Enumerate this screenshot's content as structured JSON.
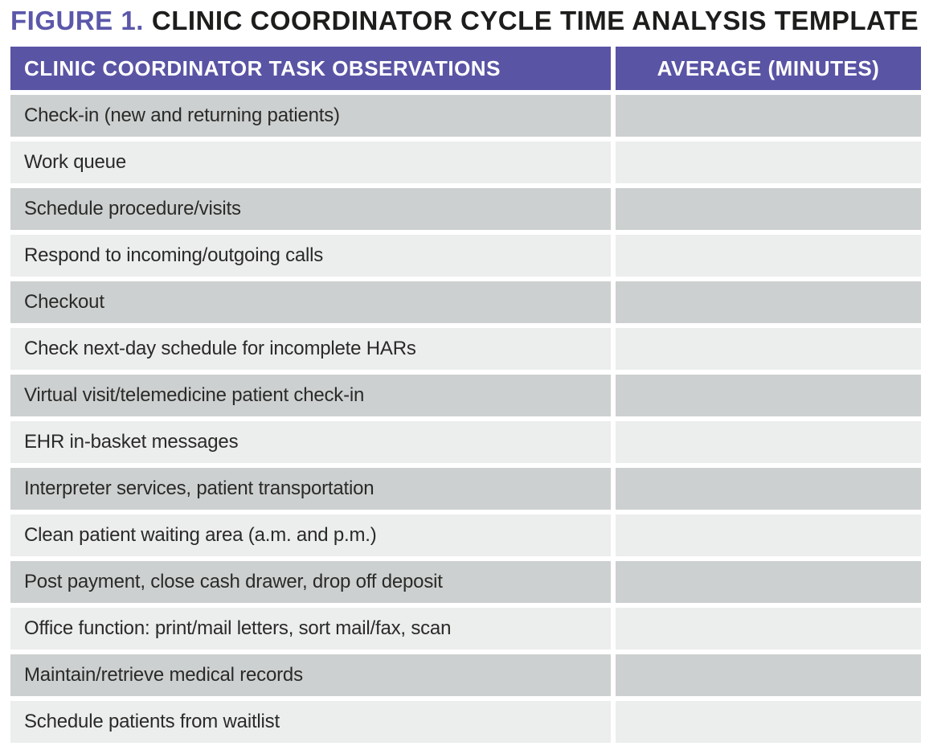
{
  "figure": {
    "label": "FIGURE 1.",
    "title": "CLINIC COORDINATOR CYCLE TIME ANALYSIS TEMPLATE"
  },
  "table": {
    "columns": [
      "CLINIC COORDINATOR TASK OBSERVATIONS",
      "AVERAGE (MINUTES)"
    ],
    "rows": [
      {
        "task": "Check-in (new and returning patients)",
        "average": ""
      },
      {
        "task": "Work queue",
        "average": ""
      },
      {
        "task": "Schedule procedure/visits",
        "average": ""
      },
      {
        "task": "Respond to incoming/outgoing calls",
        "average": ""
      },
      {
        "task": "Checkout",
        "average": ""
      },
      {
        "task": "Check next-day schedule for incomplete HARs",
        "average": ""
      },
      {
        "task": "Virtual visit/telemedicine patient check-in",
        "average": ""
      },
      {
        "task": "EHR in-basket messages",
        "average": ""
      },
      {
        "task": "Interpreter services, patient transportation",
        "average": ""
      },
      {
        "task": "Clean patient waiting area (a.m. and p.m.)",
        "average": ""
      },
      {
        "task": "Post payment, close cash drawer, drop off deposit",
        "average": ""
      },
      {
        "task": "Office function: print/mail letters, sort mail/fax, scan",
        "average": ""
      },
      {
        "task": "Maintain/retrieve medical records",
        "average": ""
      },
      {
        "task": "Schedule patients from waitlist",
        "average": ""
      }
    ]
  },
  "colors": {
    "header_bg": "#5a54a5",
    "title_accent": "#5b58aa",
    "row_dark": "#cdd0d0",
    "row_light": "#eceded",
    "header_text": "#ffffff",
    "cell_text": "#2a2a28"
  }
}
